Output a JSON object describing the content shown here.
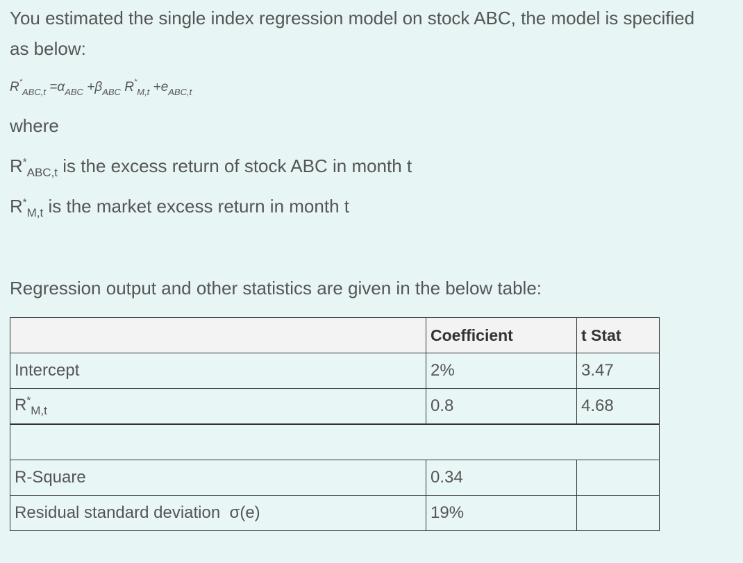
{
  "intro": "You estimated the single index regression model on stock ABC, the model is specified as below:",
  "formula": {
    "lhs": {
      "symbol": "R",
      "sup": "*",
      "sub": "ABC,t"
    },
    "equals": "=",
    "alpha": "α",
    "alpha_sub": "ABC",
    "plus1": "+",
    "beta": "β",
    "beta_sub": "ABC",
    "market": {
      "symbol": "R",
      "sup": "*",
      "sub": "M,t"
    },
    "plus2": "+",
    "error": "e",
    "error_sub": "ABC,t"
  },
  "where": "where",
  "definitions": [
    {
      "symbol": "R",
      "sup": "*",
      "sub": "ABC,t",
      "text": "is the excess return of stock ABC in month t"
    },
    {
      "symbol": "R",
      "sup": "*",
      "sub": "M,t",
      "text": "is the market excess return in month t"
    }
  ],
  "table_intro": "Regression output and other statistics are given in the below table:",
  "table": {
    "columns": [
      "Coefficient",
      "t Stat"
    ],
    "rows": [
      {
        "label": "Intercept",
        "coefficient": "2%",
        "t_stat": "3.47"
      },
      {
        "label": {
          "symbol": "R",
          "sup": "*",
          "sub": "M,t"
        },
        "coefficient": "0.8",
        "t_stat": "4.68"
      },
      {
        "label": "R-Square",
        "coefficient": "0.34"
      },
      {
        "label": "Residual standard deviation  σ(e)",
        "coefficient": "19%"
      }
    ]
  }
}
